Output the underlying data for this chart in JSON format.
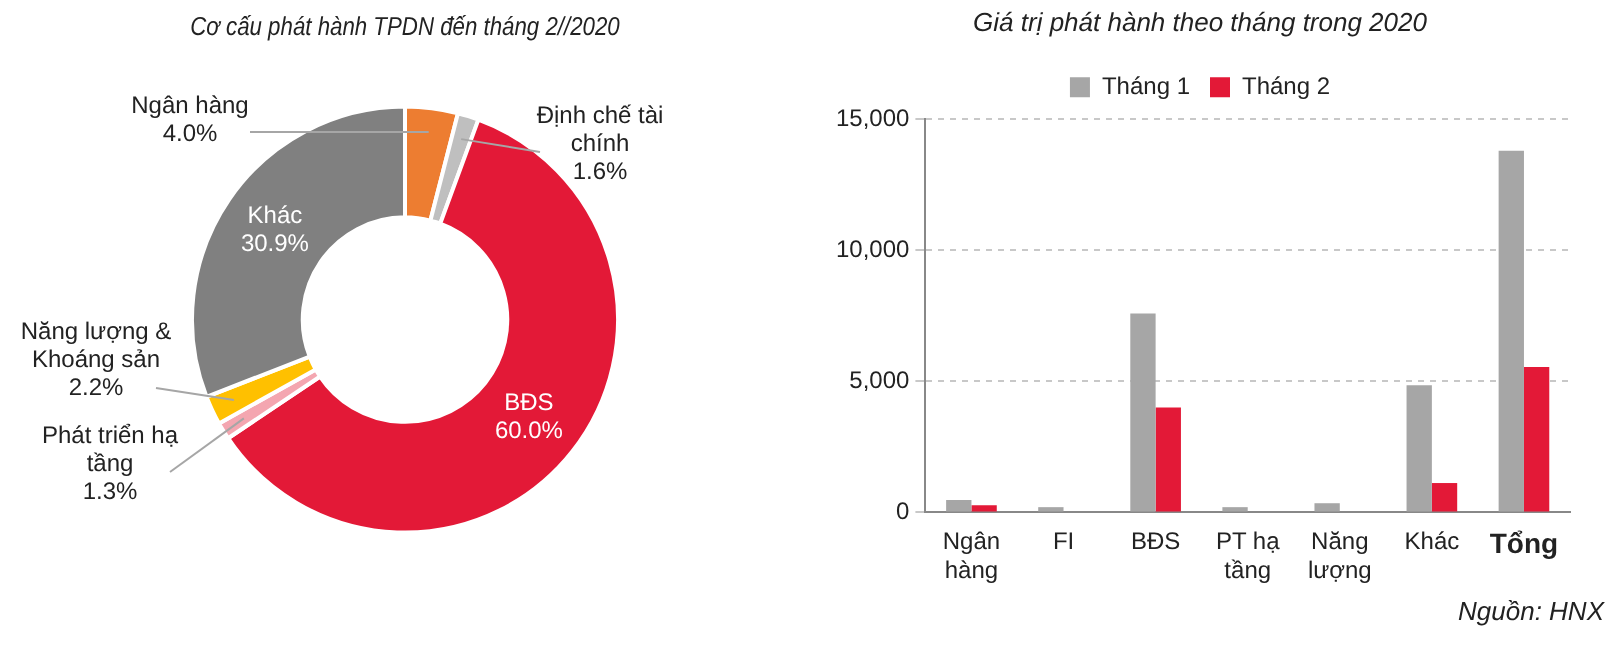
{
  "chart_data": [
    {
      "type": "donut",
      "title": "Cơ cấu phát hành TPDN đến tháng 2//2020",
      "categories": [
        "Ngân hàng",
        "Định chế tài chính",
        "BĐS",
        "Phát triển hạ tầng",
        "Năng lượng & Khoáng sản",
        "Khác"
      ],
      "values": [
        4.0,
        1.6,
        60.0,
        1.3,
        2.2,
        30.9
      ],
      "colors": [
        "#ed7d31",
        "#bfbfbf",
        "#e31937",
        "#f4a6b0",
        "#ffc000",
        "#808080"
      ],
      "value_labels": [
        "4.0%",
        "1.6%",
        "60.0%",
        "1.3%",
        "2.2%",
        "30.9%"
      ]
    },
    {
      "type": "bar",
      "title": "Giá trị phát hành theo tháng trong 2020",
      "categories": [
        "Ngân hàng",
        "FI",
        "BĐS",
        "PT hạ tầng",
        "Năng lượng",
        "Khác",
        "Tổng"
      ],
      "series": [
        {
          "name": "Tháng 1",
          "color": "#a6a6a6",
          "values": [
            470,
            200,
            7590,
            200,
            350,
            4850,
            13800
          ]
        },
        {
          "name": "Tháng 2",
          "color": "#e31937",
          "values": [
            270,
            null,
            4000,
            0,
            null,
            1120,
            5550
          ]
        }
      ],
      "ylim": [
        0,
        15000
      ],
      "yticks": [
        {
          "value": 0,
          "label": "0"
        },
        {
          "value": 5000,
          "label": "5,000"
        },
        {
          "value": 10000,
          "label": "10,000"
        },
        {
          "value": 15000,
          "label": "15,000"
        }
      ],
      "grid": "y",
      "legend": "top",
      "annotations": [
        "Nguồn: HNX"
      ]
    }
  ]
}
